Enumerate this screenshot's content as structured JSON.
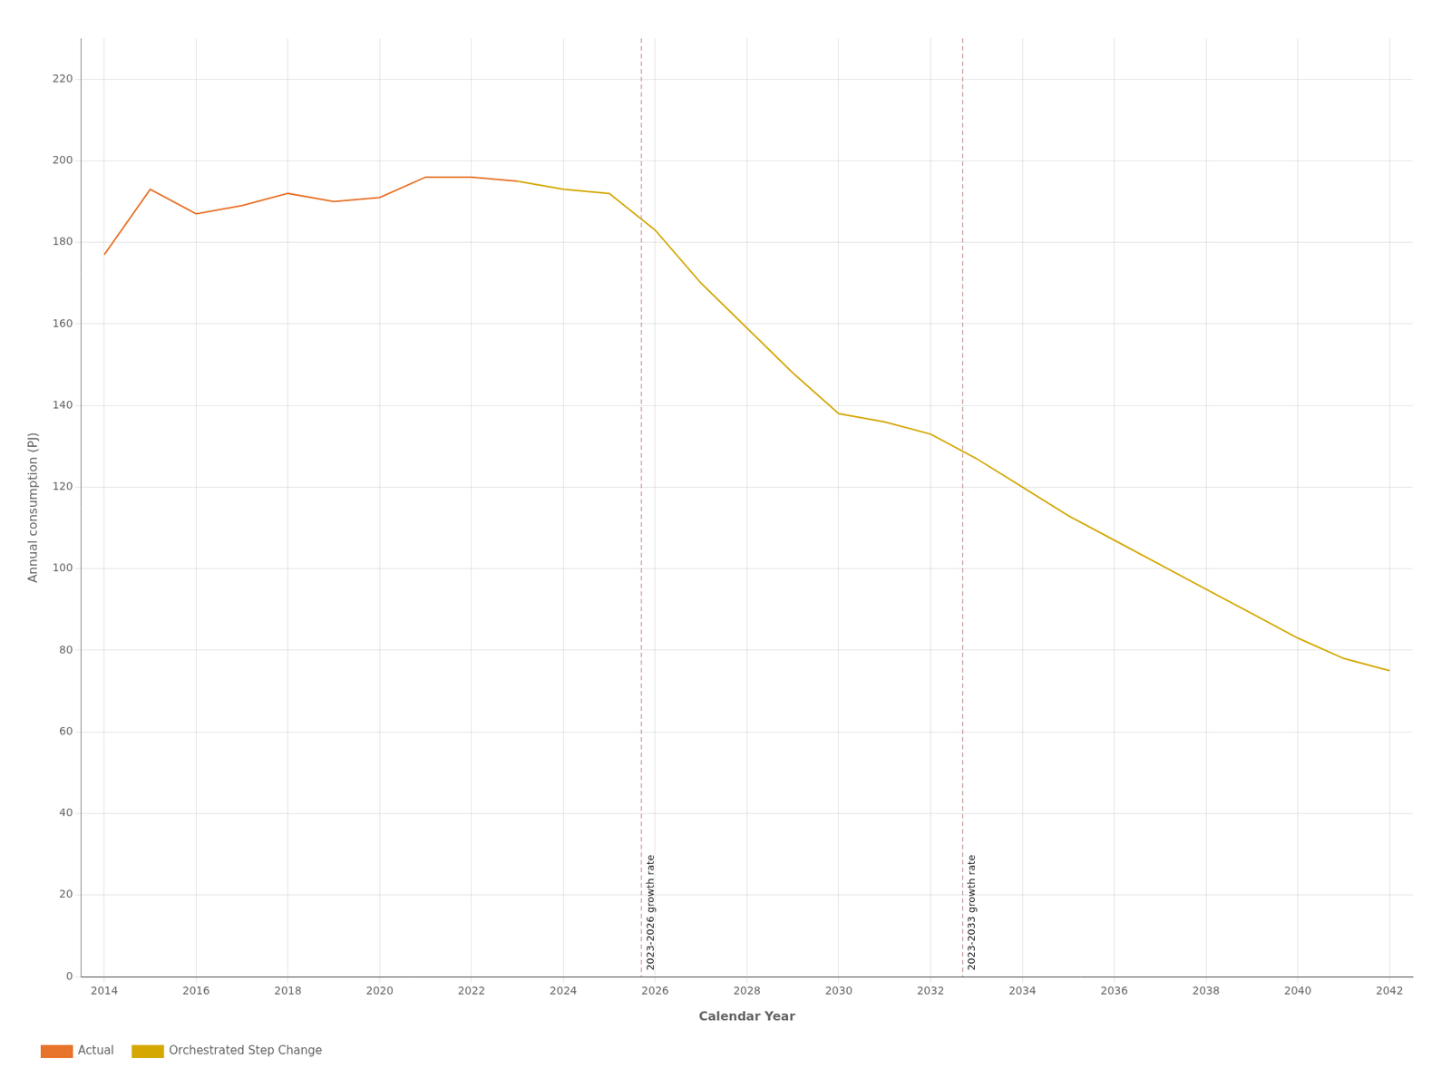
{
  "chart_data": {
    "type": "line",
    "x_label": "Calendar Year",
    "y_label": "Annual consumption (PJ)",
    "series": [
      {
        "name": "Actual",
        "color": "#E8732A",
        "x": [
          2014,
          2015,
          2016,
          2017,
          2018,
          2019,
          2020,
          2021,
          2022,
          2023
        ],
        "values": [
          177,
          193,
          187,
          189,
          192,
          190,
          191,
          196,
          196,
          195
        ]
      },
      {
        "name": "Orchestrated Step Change",
        "color": "#D4A800",
        "x": [
          2023,
          2024,
          2025,
          2026,
          2027,
          2028,
          2029,
          2030,
          2031,
          2032,
          2033,
          2034,
          2035,
          2036,
          2037,
          2038,
          2039,
          2040,
          2041,
          2042
        ],
        "values": [
          195,
          193,
          192,
          183,
          170,
          159,
          148,
          138,
          136,
          133,
          127,
          120,
          113,
          107,
          101,
          95,
          89,
          83,
          78,
          75
        ]
      }
    ],
    "annotations": [
      {
        "x": 2025.7,
        "label": "2023-2026 growth rate",
        "color": "#C49090",
        "line_style": "dashed"
      },
      {
        "x": 2032.7,
        "label": "2023-2033 growth rate",
        "color": "#C49090",
        "line_style": "dashed"
      }
    ],
    "xlim": [
      2013.5,
      2042.5
    ],
    "xticks": [
      2014,
      2016,
      2018,
      2020,
      2022,
      2024,
      2026,
      2028,
      2030,
      2032,
      2034,
      2036,
      2038,
      2040,
      2042
    ],
    "ylim": [
      0,
      230
    ],
    "yticks": [
      0,
      20,
      40,
      60,
      80,
      100,
      120,
      140,
      160,
      180,
      200,
      220
    ],
    "grid": true,
    "legend": "bottom"
  }
}
